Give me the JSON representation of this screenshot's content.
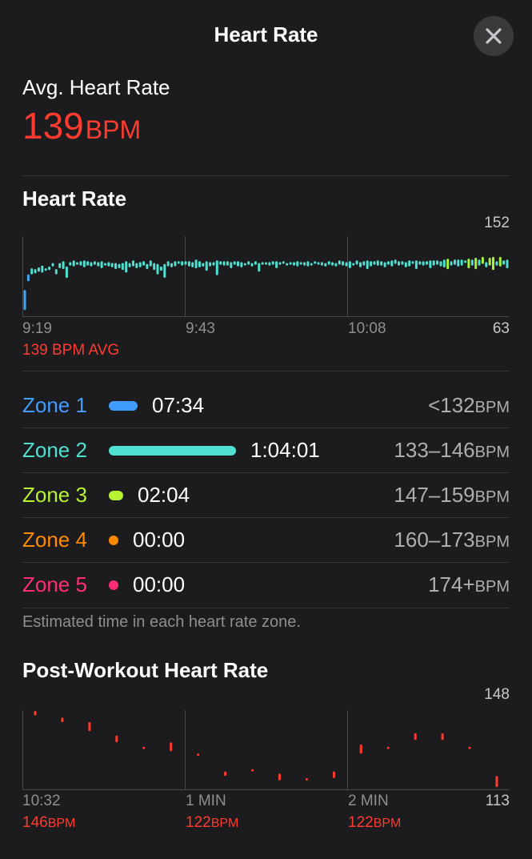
{
  "header": {
    "title": "Heart Rate",
    "close_icon": "close-icon"
  },
  "avg": {
    "label": "Avg. Heart Rate",
    "value": "139",
    "unit": "BPM"
  },
  "hr_chart": {
    "title": "Heart Rate",
    "max_label": "152",
    "min_label": "63",
    "x_labels": [
      "9:19",
      "9:43",
      "10:08"
    ],
    "avg_text": "139 BPM AVG",
    "colors": {
      "low": "#40a8f0",
      "mid": "#4fe0d2",
      "high": "#a6f23a"
    },
    "chart_data": {
      "type": "bar",
      "ylim": [
        63,
        152
      ],
      "ranges": [
        [
          70,
          93
        ],
        [
          103,
          111
        ],
        [
          111,
          118
        ],
        [
          112,
          117
        ],
        [
          114,
          119
        ],
        [
          113,
          121
        ],
        [
          115,
          118
        ],
        [
          116,
          120
        ],
        [
          120,
          124
        ],
        [
          111,
          117
        ],
        [
          118,
          124
        ],
        [
          117,
          126
        ],
        [
          107,
          120
        ],
        [
          121,
          125
        ],
        [
          120,
          127
        ],
        [
          122,
          125
        ],
        [
          121,
          126
        ],
        [
          119,
          127
        ],
        [
          121,
          126
        ],
        [
          120,
          125
        ],
        [
          122,
          126
        ],
        [
          120,
          125
        ],
        [
          118,
          126
        ],
        [
          121,
          124
        ],
        [
          120,
          125
        ],
        [
          119,
          124
        ],
        [
          117,
          124
        ],
        [
          118,
          123
        ],
        [
          116,
          124
        ],
        [
          113,
          126
        ],
        [
          119,
          124
        ],
        [
          120,
          127
        ],
        [
          118,
          124
        ],
        [
          119,
          125
        ],
        [
          121,
          126
        ],
        [
          117,
          123
        ],
        [
          120,
          127
        ],
        [
          116,
          124
        ],
        [
          111,
          123
        ],
        [
          115,
          120
        ],
        [
          107,
          123
        ],
        [
          120,
          126
        ],
        [
          119,
          124
        ],
        [
          120,
          126
        ],
        [
          123,
          126
        ],
        [
          121,
          126
        ],
        [
          122,
          126
        ],
        [
          120,
          126
        ],
        [
          119,
          125
        ],
        [
          118,
          128
        ],
        [
          119,
          126
        ],
        [
          120,
          124
        ],
        [
          115,
          126
        ],
        [
          120,
          125
        ],
        [
          121,
          125
        ],
        [
          110,
          127
        ],
        [
          122,
          126
        ],
        [
          121,
          126
        ],
        [
          121,
          126
        ],
        [
          118,
          125
        ],
        [
          122,
          126
        ],
        [
          120,
          126
        ],
        [
          119,
          125
        ],
        [
          121,
          124
        ],
        [
          122,
          126
        ],
        [
          120,
          124
        ],
        [
          122,
          126
        ],
        [
          114,
          124
        ],
        [
          122,
          125
        ],
        [
          122,
          125
        ],
        [
          121,
          125
        ],
        [
          122,
          126
        ],
        [
          118,
          126
        ],
        [
          122,
          125
        ],
        [
          123,
          126
        ],
        [
          121,
          124
        ],
        [
          122,
          125
        ],
        [
          121,
          125
        ],
        [
          120,
          126
        ],
        [
          122,
          125
        ],
        [
          121,
          125
        ],
        [
          120,
          126
        ],
        [
          121,
          124
        ],
        [
          123,
          126
        ],
        [
          122,
          125
        ],
        [
          121,
          125
        ],
        [
          120,
          124
        ],
        [
          122,
          126
        ],
        [
          121,
          125
        ],
        [
          120,
          124
        ],
        [
          122,
          127
        ],
        [
          121,
          126
        ],
        [
          120,
          125
        ],
        [
          118,
          126
        ],
        [
          121,
          124
        ],
        [
          122,
          127
        ],
        [
          119,
          125
        ],
        [
          121,
          126
        ],
        [
          117,
          127
        ],
        [
          120,
          126
        ],
        [
          122,
          126
        ],
        [
          121,
          127
        ],
        [
          121,
          126
        ],
        [
          119,
          125
        ],
        [
          122,
          126
        ],
        [
          120,
          127
        ],
        [
          123,
          128
        ],
        [
          121,
          126
        ],
        [
          122,
          126
        ],
        [
          119,
          125
        ],
        [
          120,
          127
        ],
        [
          123,
          126
        ],
        [
          117,
          127
        ],
        [
          122,
          126
        ],
        [
          121,
          126
        ],
        [
          122,
          126
        ],
        [
          118,
          127
        ],
        [
          121,
          127
        ],
        [
          122,
          127
        ],
        [
          120,
          126
        ],
        [
          119,
          128
        ],
        [
          117,
          129
        ],
        [
          121,
          126
        ],
        [
          122,
          128
        ],
        [
          120,
          128
        ],
        [
          121,
          128
        ],
        [
          124,
          127
        ],
        [
          118,
          129
        ],
        [
          121,
          128
        ],
        [
          117,
          130
        ],
        [
          121,
          128
        ],
        [
          123,
          131
        ],
        [
          119,
          125
        ],
        [
          121,
          130
        ],
        [
          116,
          131
        ],
        [
          121,
          126
        ],
        [
          120,
          131
        ],
        [
          122,
          127
        ],
        [
          118,
          128
        ]
      ]
    }
  },
  "zones": [
    {
      "name": "Zone 1",
      "color": "#409cff",
      "time": "07:34",
      "range": "<132",
      "unit": "BPM",
      "fraction": 0.103
    },
    {
      "name": "Zone 2",
      "color": "#4fe0d2",
      "time": "1:04:01",
      "range": "133–146",
      "unit": "BPM",
      "fraction": 0.869
    },
    {
      "name": "Zone 3",
      "color": "#b7f233",
      "time": "02:04",
      "range": "147–159",
      "unit": "BPM",
      "fraction": 0.028
    },
    {
      "name": "Zone 4",
      "color": "#ff8a00",
      "time": "00:00",
      "range": "160–173",
      "unit": "BPM",
      "fraction": 0
    },
    {
      "name": "Zone 5",
      "color": "#ff2d78",
      "time": "00:00",
      "range": "174+",
      "unit": "BPM",
      "fraction": 0
    }
  ],
  "zones_note": "Estimated time in each heart rate zone.",
  "post_chart": {
    "title": "Post-Workout Heart Rate",
    "max_label": "148",
    "min_label": "113",
    "x_labels": [
      "10:32",
      "1 MIN",
      "2 MIN"
    ],
    "readings": [
      {
        "value": "146",
        "unit": "BPM"
      },
      {
        "value": "122",
        "unit": "BPM"
      },
      {
        "value": "122",
        "unit": "BPM"
      }
    ],
    "color": "#ff3b2f",
    "chart_data": {
      "type": "bar",
      "ylim": [
        113,
        148
      ],
      "ranges": [
        [
          146,
          148
        ],
        [
          143,
          145
        ],
        [
          139,
          143
        ],
        [
          134,
          137
        ],
        [
          131,
          132
        ],
        [
          130,
          134
        ],
        [
          128,
          129
        ],
        [
          119,
          121
        ],
        [
          121,
          122
        ],
        [
          117,
          120
        ],
        [
          117,
          118
        ],
        [
          118,
          121
        ],
        [
          129,
          133
        ],
        [
          131,
          132
        ],
        [
          135,
          138
        ],
        [
          135,
          138
        ],
        [
          131,
          132
        ],
        [
          114,
          119
        ]
      ]
    }
  }
}
